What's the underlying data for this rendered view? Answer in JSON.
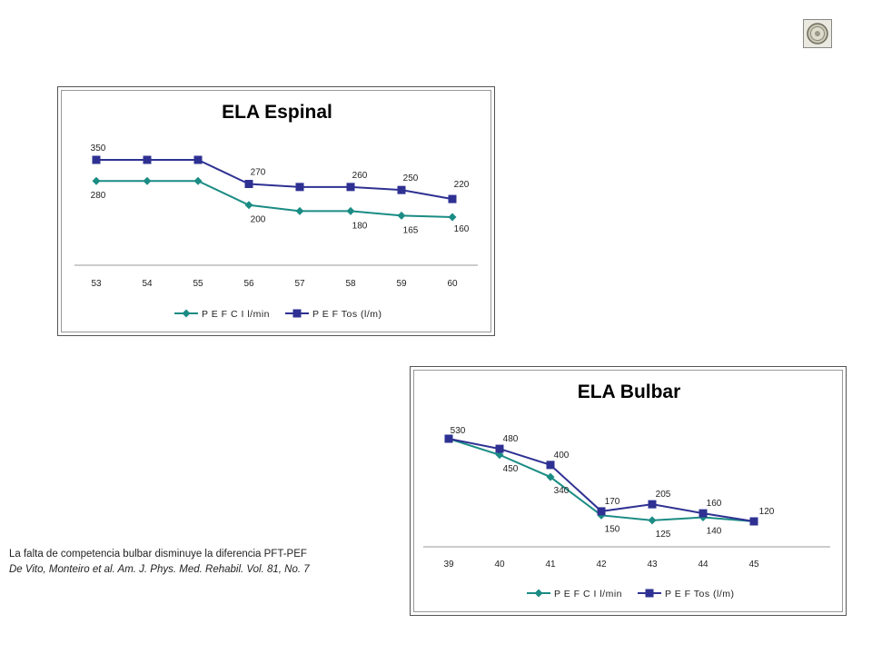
{
  "logo": {
    "icon": "seal-logo-icon"
  },
  "caption": {
    "line1": "La falta de competencia bulbar disminuye la diferencia PFT-PEF",
    "line2": "De Vito, Monteiro et al. Am. J. Phys. Med. Rehabil. Vol. 81, No. 7"
  },
  "chart_data": [
    {
      "type": "line",
      "title": "ELA Espinal",
      "categories": [
        "53",
        "54",
        "55",
        "56",
        "57",
        "58",
        "59",
        "60"
      ],
      "series": [
        {
          "name": "P E F  C I l/min",
          "color": "#1b8c84",
          "marker": "diamond",
          "values": [
            280,
            280,
            280,
            200,
            180,
            180,
            165,
            160
          ],
          "labels": [
            "280",
            "",
            "",
            "200",
            "",
            "180",
            "165",
            "160"
          ]
        },
        {
          "name": "P E F  Tos  (l/m)",
          "color": "#2e3192",
          "marker": "square",
          "values": [
            350,
            350,
            350,
            270,
            260,
            260,
            250,
            220
          ],
          "labels": [
            "350",
            "",
            "",
            "270",
            "",
            "260",
            "250",
            "220"
          ]
        }
      ],
      "ylim": [
        0,
        400
      ],
      "y_axis_visible": false,
      "grid": false,
      "legend": "bottom"
    },
    {
      "type": "line",
      "title": "ELA Bulbar",
      "categories": [
        "39",
        "40",
        "41",
        "42",
        "43",
        "44",
        "45"
      ],
      "series": [
        {
          "name": "P E F  C I l/min",
          "color": "#1b8c84",
          "marker": "diamond",
          "values": [
            530,
            450,
            340,
            150,
            125,
            140,
            120
          ],
          "labels": [
            "",
            "450",
            "340",
            "150",
            "125",
            "140",
            ""
          ]
        },
        {
          "name": "P E F  Tos  (l/m)",
          "color": "#2e3192",
          "marker": "square",
          "values": [
            530,
            480,
            400,
            170,
            205,
            160,
            120
          ],
          "labels": [
            "530",
            "480",
            "400",
            "170",
            "205",
            "160",
            "120"
          ]
        }
      ],
      "ylim": [
        0,
        600
      ],
      "y_axis_visible": false,
      "grid": false,
      "legend": "bottom"
    }
  ]
}
